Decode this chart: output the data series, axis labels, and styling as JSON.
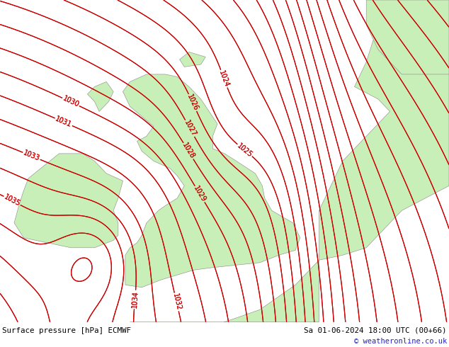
{
  "title_left": "Surface pressure [hPa] ECMWF",
  "title_right": "Sa 01-06-2024 18:00 UTC (00+66)",
  "copyright": "© weatheronline.co.uk",
  "background_color": "#e0dede",
  "land_color": "#c8efb8",
  "land_edge_color": "#888888",
  "contour_color": "#cc0000",
  "contour_linewidth": 0.85,
  "label_fontsize": 7.0,
  "label_color": "#cc0000",
  "bottom_bar_color": "#c8c8c8",
  "figsize": [
    6.34,
    4.9
  ],
  "dpi": 100
}
